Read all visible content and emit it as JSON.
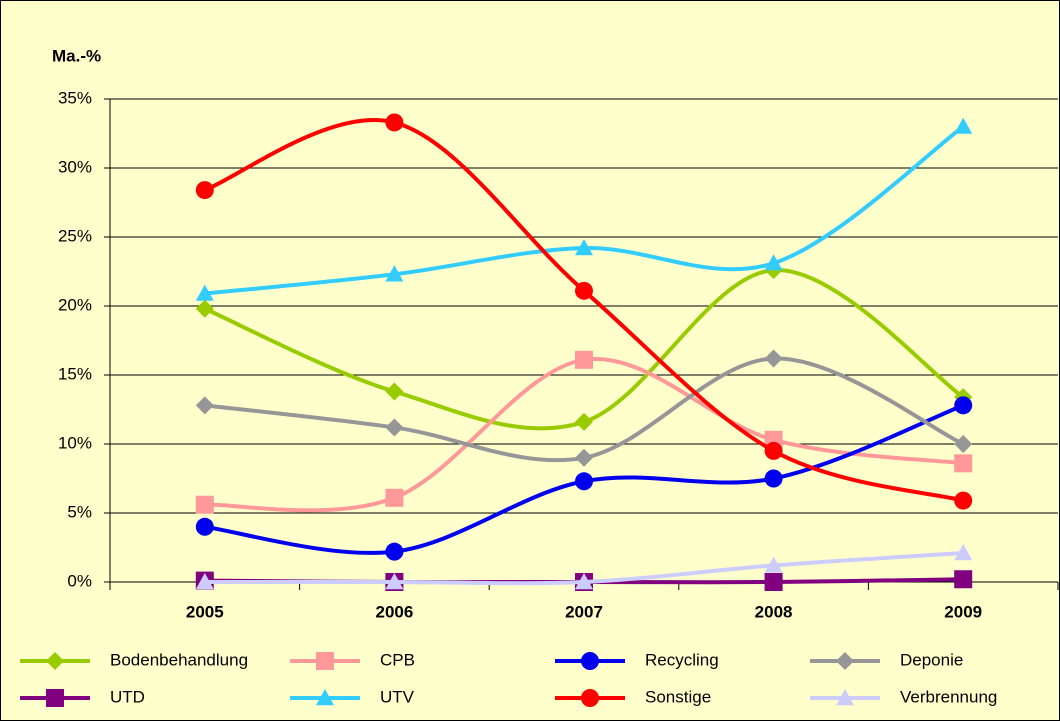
{
  "chart_data": {
    "type": "line",
    "smooth": true,
    "ylabel": "Ma.-%",
    "categories": [
      "2005",
      "2006",
      "2007",
      "2008",
      "2009"
    ],
    "ylim": [
      0,
      35
    ],
    "yticks": [
      {
        "value": 0,
        "label": "0%"
      },
      {
        "value": 5,
        "label": "5%"
      },
      {
        "value": 10,
        "label": "10%"
      },
      {
        "value": 15,
        "label": "15%"
      },
      {
        "value": 20,
        "label": "20%"
      },
      {
        "value": 25,
        "label": "25%"
      },
      {
        "value": 30,
        "label": "30%"
      },
      {
        "value": 35,
        "label": "35%"
      }
    ],
    "grid": true,
    "legend": "bottom",
    "series": [
      {
        "name": "Bodenbehandlung",
        "color": "#99cc00",
        "marker": "diamond",
        "values": [
          19.8,
          13.8,
          11.6,
          22.6,
          13.4
        ]
      },
      {
        "name": "CPB",
        "color": "#ff9999",
        "marker": "square",
        "values": [
          5.6,
          6.1,
          16.1,
          10.3,
          8.6
        ]
      },
      {
        "name": "Recycling",
        "color": "#0000ee",
        "marker": "circle",
        "values": [
          4.0,
          2.2,
          7.3,
          7.5,
          12.8
        ]
      },
      {
        "name": "Deponie",
        "color": "#969696",
        "marker": "diamond",
        "values": [
          12.8,
          11.2,
          9.0,
          16.2,
          10.0
        ]
      },
      {
        "name": "UTD",
        "color": "#800080",
        "marker": "square",
        "values": [
          0.1,
          0,
          0,
          0,
          0.2
        ]
      },
      {
        "name": "UTV",
        "color": "#33ccff",
        "marker": "triangle",
        "values": [
          20.9,
          22.3,
          24.2,
          23.1,
          33.0
        ]
      },
      {
        "name": "Sonstige",
        "color": "#ff0000",
        "marker": "circle",
        "values": [
          28.4,
          33.3,
          21.1,
          9.5,
          5.9
        ]
      },
      {
        "name": "Verbrennung",
        "color": "#ccccff",
        "marker": "triangle",
        "values": [
          0,
          0,
          0,
          1.2,
          2.1
        ]
      }
    ]
  }
}
